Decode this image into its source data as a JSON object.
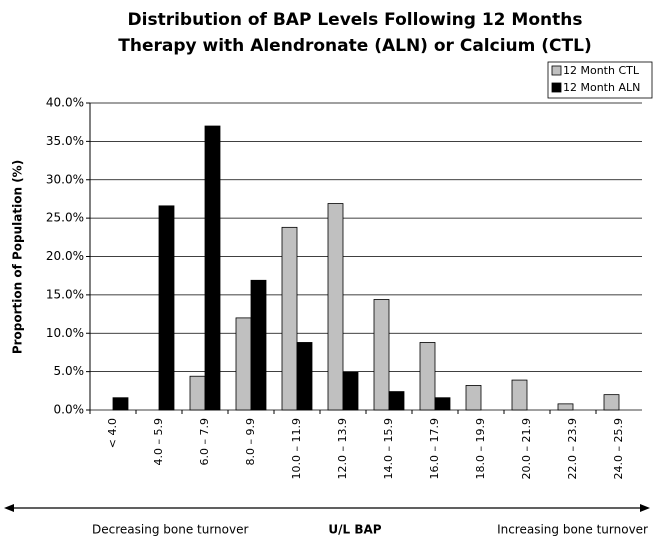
{
  "chart_data": {
    "type": "bar",
    "title": "Distribution of BAP Levels Following 12 Months",
    "subtitle": "Therapy with Alendronate (ALN) or Calcium (CTL)",
    "x_label": "U/L BAP",
    "y_label": "Proportion of Population (%)",
    "annotations": [
      "Decreasing bone turnover",
      "Increasing bone turnover"
    ],
    "categories": [
      "< 4.0",
      "4.0 – 5.9",
      "6.0 – 7.9",
      "8.0 – 9.9",
      "10.0 – 11.9",
      "12.0 – 13.9",
      "14.0 – 15.9",
      "16.0 – 17.9",
      "18.0 – 19.9",
      "20.0 – 21.9",
      "22.0 – 23.9",
      "24.0 – 25.9"
    ],
    "series": [
      {
        "name": "12 Month CTL",
        "color": "#c0c0c0",
        "values": [
          0,
          0,
          4.4,
          12.0,
          23.8,
          26.9,
          14.4,
          8.8,
          3.2,
          3.9,
          0.8,
          2.0
        ]
      },
      {
        "name": "12 Month ALN",
        "color": "#000000",
        "values": [
          1.6,
          26.6,
          37.0,
          16.9,
          8.8,
          4.9,
          2.4,
          1.6,
          0,
          0,
          0,
          0
        ]
      }
    ],
    "ylim": [
      0,
      40
    ],
    "yticks": [
      {
        "value": 0,
        "label": "0.0%"
      },
      {
        "value": 5,
        "label": "5.0%"
      },
      {
        "value": 10,
        "label": "10.0%"
      },
      {
        "value": 15,
        "label": "15.0%"
      },
      {
        "value": 20,
        "label": "20.0%"
      },
      {
        "value": 25,
        "label": "25.0%"
      },
      {
        "value": 30,
        "label": "30.0%"
      },
      {
        "value": 35,
        "label": "35.0%"
      },
      {
        "value": 40,
        "label": "40.0%"
      }
    ],
    "grid": true,
    "legend": "top-right"
  }
}
